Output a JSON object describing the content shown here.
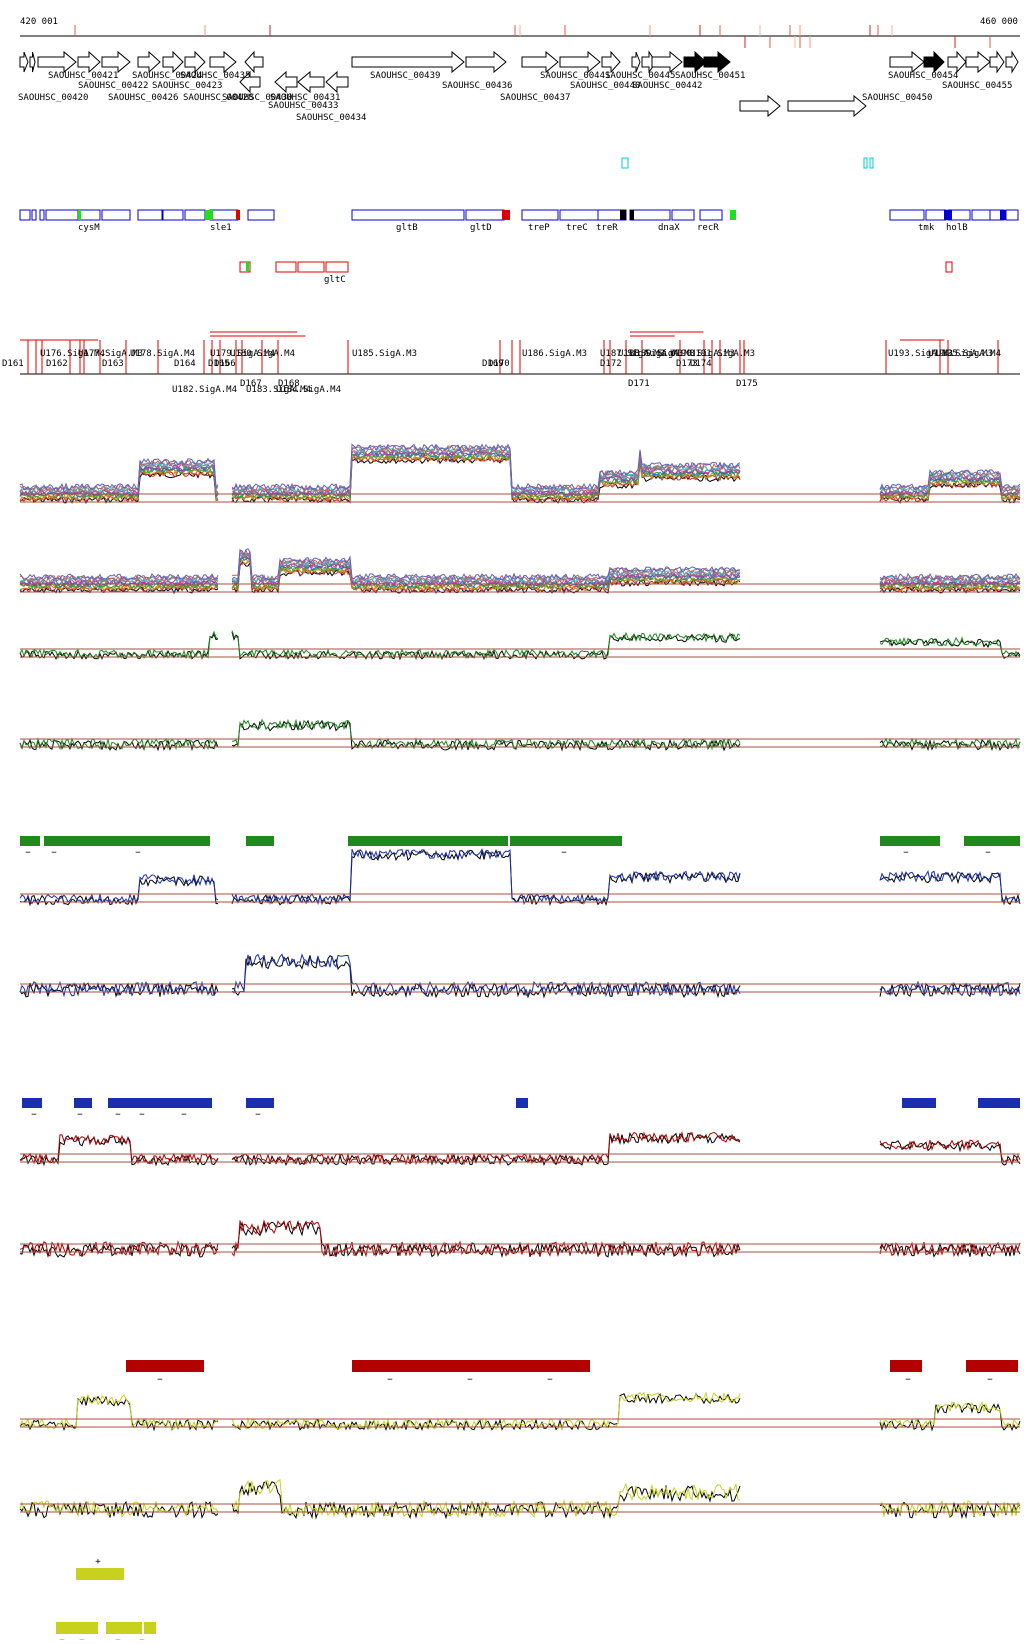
{
  "coords": {
    "start": "420 001",
    "end": "460 000"
  },
  "colors": {
    "track_black": "#000000",
    "gene_blue": "#0000cc",
    "gene_red": "#dd0000",
    "cyan": "#00cccc",
    "green": "#1e8a1e",
    "bright_green": "#22dd22",
    "blue": "#1a2fb0",
    "dark_red": "#b30000",
    "yellow": "#c8d21e",
    "refline": "#a05040"
  },
  "cds_above": [
    "SAOUHSC_00421",
    "SAOUHSC_00424",
    "SAOUHSC_00435",
    "SAOUHSC_00439",
    "SAOUHSC_00441",
    "SAOUHSC_00445",
    "SAOUHSC_00451",
    "SAOUHSC_00454"
  ],
  "cds_below": [
    "SAOUHSC_00420",
    "SAOUHSC_00422",
    "SAOUHSC_00426",
    "SAOUHSC_00423",
    "SAOUHSC_00428",
    "SAOUHSC_00430",
    "SAOUHSC_00431",
    "SAOUHSC_00433",
    "SAOUHSC_00434",
    "SAOUHSC_00436",
    "SAOUHSC_00437",
    "SAOUHSC_00440",
    "SAOUHSC_00442",
    "SAOUHSC_00450",
    "SAOUHSC_00455"
  ],
  "gene_names_blue": [
    "cysM",
    "sle1",
    "gltB",
    "gltD",
    "treP",
    "treC",
    "treR",
    "dnaX",
    "recR",
    "tmk",
    "holB"
  ],
  "gene_names_red": [
    "gltC"
  ],
  "upshift_labels": [
    "U176.SigA.M4",
    "U177.SigA.M3",
    "U178.SigA.M4",
    "U179.SigA.M4",
    "U180.SigA.M4",
    "U185.SigA.M3",
    "U186.SigA.M3",
    "U187.SigA.M3",
    "U188.SigA.M3",
    "U189.SigA.M3",
    "U190.SigA.M3",
    "U191.SigA.M3",
    "U193.SigA.M3",
    "U194.SigA.M3",
    "U195.SigA.M4"
  ],
  "upshift_labels_below": [
    "U182.SigA.M4",
    "U183.SigA.M4",
    "U184.SigA.M4"
  ],
  "downshift_labels": [
    "D161",
    "D162",
    "D163",
    "D164",
    "D165",
    "D166",
    "D169",
    "D170",
    "D172",
    "D173",
    "D174"
  ],
  "downshift_labels_below": [
    "D167",
    "D168",
    "D171",
    "D175"
  ],
  "strand_marks": {
    "minus": "−",
    "plus": "+"
  }
}
